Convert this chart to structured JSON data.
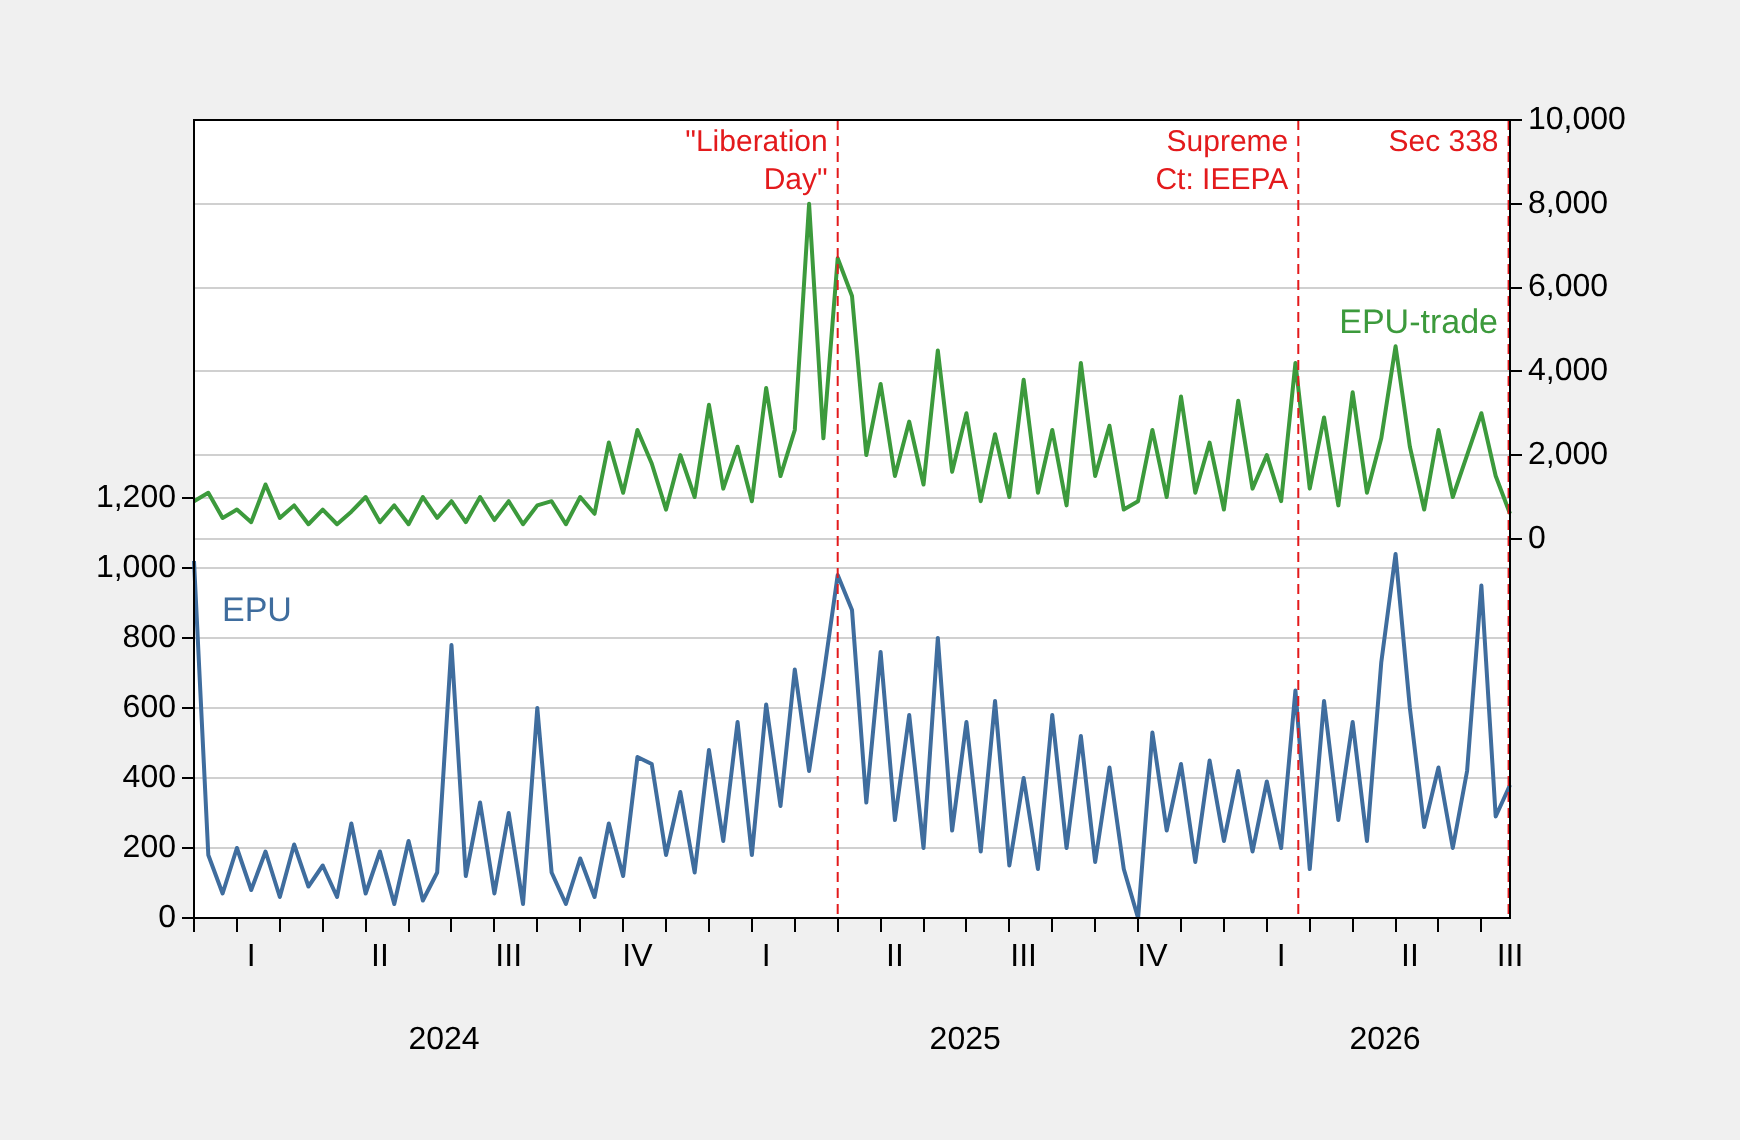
{
  "chart_data": {
    "type": "line",
    "legend": false,
    "grid": "y",
    "marker": "none",
    "line_style": "solid",
    "categories": [
      null,
      null,
      null,
      null,
      "I",
      null,
      null,
      null,
      null,
      null,
      null,
      null,
      null,
      "II",
      null,
      null,
      null,
      null,
      null,
      null,
      null,
      null,
      "III",
      null,
      null,
      null,
      null,
      null,
      null,
      null,
      null,
      "IV",
      null,
      null,
      null,
      null,
      null,
      null,
      null,
      null,
      "I",
      null,
      null,
      null,
      null,
      null,
      null,
      null,
      null,
      "II",
      null,
      null,
      null,
      null,
      null,
      null,
      null,
      null,
      "III",
      null,
      null,
      null,
      null,
      null,
      null,
      null,
      null,
      "IV",
      null,
      null,
      null,
      null,
      null,
      null,
      null,
      null,
      "I",
      null,
      null,
      null,
      null,
      null,
      null,
      null,
      null,
      "II",
      null,
      null,
      null,
      null,
      null,
      null,
      "III"
    ],
    "series": [
      {
        "name": "EPU-trade",
        "color": "#3c9a3c",
        "axis": "y2",
        "values": [
          900,
          1100,
          500,
          700,
          400,
          1300,
          500,
          800,
          350,
          700,
          350,
          650,
          1000,
          400,
          800,
          350,
          1000,
          500,
          900,
          400,
          1000,
          450,
          900,
          350,
          800,
          900,
          350,
          1000,
          600,
          2300,
          1100,
          2600,
          1800,
          700,
          2000,
          1000,
          3200,
          1200,
          2200,
          900,
          3600,
          1500,
          2600,
          8000,
          2400,
          6700,
          5800,
          2000,
          3700,
          1500,
          2800,
          1300,
          4500,
          1600,
          3000,
          900,
          2500,
          1000,
          3800,
          1100,
          2600,
          800,
          4200,
          1500,
          2700,
          700,
          900,
          2600,
          1000,
          3400,
          1100,
          2300,
          700,
          3300,
          1200,
          2000,
          900,
          4200,
          1200,
          2900,
          800,
          3500,
          1100,
          2400,
          4600,
          2200,
          700,
          2600,
          1000,
          2000,
          3000,
          1500,
          600
        ]
      },
      {
        "name": "EPU",
        "color": "#3f6d9e",
        "values": [
          1020,
          180,
          70,
          200,
          80,
          190,
          60,
          210,
          90,
          150,
          60,
          270,
          70,
          190,
          40,
          220,
          50,
          130,
          780,
          120,
          330,
          70,
          300,
          40,
          600,
          130,
          40,
          170,
          60,
          270,
          120,
          460,
          440,
          180,
          360,
          130,
          480,
          220,
          560,
          180,
          610,
          320,
          710,
          420,
          690,
          980,
          880,
          330,
          760,
          280,
          580,
          200,
          800,
          250,
          560,
          190,
          620,
          150,
          400,
          140,
          580,
          200,
          520,
          160,
          430,
          140,
          0,
          530,
          250,
          440,
          160,
          450,
          220,
          420,
          190,
          390,
          200,
          650,
          140,
          620,
          280,
          560,
          220,
          730,
          1040,
          600,
          260,
          430,
          200,
          420,
          950,
          290,
          380
        ]
      }
    ],
    "ylim": [
      0,
      2280
    ],
    "yticks": [
      0,
      200,
      400,
      600,
      800,
      {
        "value": 1000,
        "label": "1,000"
      },
      {
        "value": 1200,
        "label": "1,200"
      }
    ],
    "y2lim": [
      -9050,
      10000
    ],
    "y2ticks": [
      0,
      {
        "value": 2000,
        "label": "2,000"
      },
      {
        "value": 4000,
        "label": "4,000"
      },
      {
        "value": 6000,
        "label": "6,000"
      },
      {
        "value": 8000,
        "label": "8,000"
      },
      {
        "value": 10000,
        "label": "10,000"
      }
    ],
    "annotations": [
      "2024",
      "2025",
      "2026",
      "\"Liberation Day\"",
      "Supreme Ct: IEEPA",
      "Sec 338"
    ]
  }
}
